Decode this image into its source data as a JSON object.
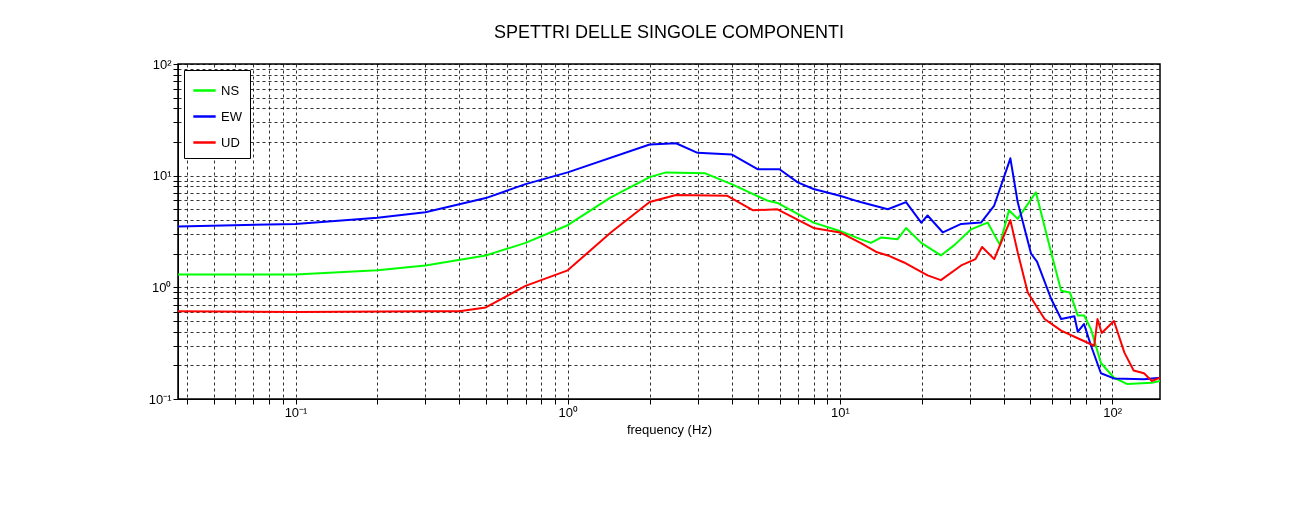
{
  "chart_data": {
    "type": "line",
    "title": "SPETTRI DELLE SINGOLE COMPONENTI",
    "xlabel": "frequency (Hz)",
    "log": "xy",
    "grid": true,
    "legend": "top left",
    "marker": "none",
    "line_style": "solid",
    "xlim": [
      0.037,
      150
    ],
    "ylim": [
      0.1,
      100
    ],
    "xticks": [
      {
        "value": 0.04,
        "label": null
      },
      {
        "value": 0.05,
        "label": null
      },
      {
        "value": 0.06,
        "label": null
      },
      {
        "value": 0.07,
        "label": null
      },
      {
        "value": 0.08,
        "label": null
      },
      {
        "value": 0.09,
        "label": null
      },
      {
        "value": 0.1,
        "label": "10⁻¹"
      },
      {
        "value": 0.2,
        "label": null
      },
      {
        "value": 0.3,
        "label": null
      },
      {
        "value": 0.4,
        "label": null
      },
      {
        "value": 0.5,
        "label": null
      },
      {
        "value": 0.6,
        "label": null
      },
      {
        "value": 0.7,
        "label": null
      },
      {
        "value": 0.8,
        "label": null
      },
      {
        "value": 0.9,
        "label": null
      },
      {
        "value": 1,
        "label": "10⁰"
      },
      {
        "value": 2,
        "label": null
      },
      {
        "value": 3,
        "label": null
      },
      {
        "value": 4,
        "label": null
      },
      {
        "value": 5,
        "label": null
      },
      {
        "value": 6,
        "label": null
      },
      {
        "value": 7,
        "label": null
      },
      {
        "value": 8,
        "label": null
      },
      {
        "value": 9,
        "label": null
      },
      {
        "value": 10,
        "label": "10¹"
      },
      {
        "value": 20,
        "label": null
      },
      {
        "value": 30,
        "label": null
      },
      {
        "value": 40,
        "label": null
      },
      {
        "value": 50,
        "label": null
      },
      {
        "value": 60,
        "label": null
      },
      {
        "value": 70,
        "label": null
      },
      {
        "value": 80,
        "label": null
      },
      {
        "value": 90,
        "label": null
      },
      {
        "value": 100,
        "label": "10²"
      }
    ],
    "yticks": [
      {
        "value": 0.1,
        "label": "10⁻¹"
      },
      {
        "value": 0.2,
        "label": null
      },
      {
        "value": 0.3,
        "label": null
      },
      {
        "value": 0.4,
        "label": null
      },
      {
        "value": 0.5,
        "label": null
      },
      {
        "value": 0.6,
        "label": null
      },
      {
        "value": 0.7,
        "label": null
      },
      {
        "value": 0.8,
        "label": null
      },
      {
        "value": 0.9,
        "label": null
      },
      {
        "value": 1,
        "label": "10⁰"
      },
      {
        "value": 2,
        "label": null
      },
      {
        "value": 3,
        "label": null
      },
      {
        "value": 4,
        "label": null
      },
      {
        "value": 5,
        "label": null
      },
      {
        "value": 6,
        "label": null
      },
      {
        "value": 7,
        "label": null
      },
      {
        "value": 8,
        "label": null
      },
      {
        "value": 9,
        "label": null
      },
      {
        "value": 10,
        "label": "10¹"
      },
      {
        "value": 20,
        "label": null
      },
      {
        "value": 30,
        "label": null
      },
      {
        "value": 40,
        "label": null
      },
      {
        "value": 50,
        "label": null
      },
      {
        "value": 60,
        "label": null
      },
      {
        "value": 70,
        "label": null
      },
      {
        "value": 80,
        "label": null
      },
      {
        "value": 90,
        "label": null
      },
      {
        "value": 100,
        "label": "10²"
      }
    ],
    "series": [
      {
        "name": "NS",
        "color": "#00ff00",
        "x": [
          0.037,
          0.1,
          0.2,
          0.3,
          0.5,
          0.7,
          1.0,
          1.44,
          2.0,
          2.3,
          3.2,
          4.0,
          5.4,
          5.9,
          8.0,
          10,
          11.9,
          13,
          14.2,
          16.3,
          17.5,
          19.9,
          23.5,
          26.4,
          30.3,
          34.9,
          38.7,
          41.8,
          45,
          52.5,
          59.7,
          65,
          70,
          74.8,
          79,
          83.7,
          91,
          101.6,
          114,
          140,
          150
        ],
        "values": [
          1.3,
          1.3,
          1.42,
          1.57,
          1.93,
          2.5,
          3.6,
          6.4,
          9.7,
          10.7,
          10.5,
          8.4,
          6.0,
          5.7,
          3.8,
          3.2,
          2.7,
          2.5,
          2.8,
          2.7,
          3.4,
          2.5,
          1.93,
          2.4,
          3.3,
          3.8,
          2.4,
          4.9,
          4.1,
          7.1,
          2.06,
          0.93,
          0.9,
          0.56,
          0.56,
          0.42,
          0.21,
          0.155,
          0.136,
          0.14,
          0.145
        ]
      },
      {
        "name": "EW",
        "color": "#0000ff",
        "x": [
          0.037,
          0.1,
          0.2,
          0.3,
          0.5,
          0.7,
          1.0,
          2.0,
          2.5,
          3.0,
          4.0,
          5.0,
          6.0,
          7.0,
          8.0,
          10,
          11.9,
          15,
          17.5,
          19.9,
          21,
          23.9,
          27.9,
          33,
          36.9,
          42.3,
          45,
          50.4,
          53,
          59.7,
          65,
          72.7,
          74.8,
          78.9,
          83.7,
          91,
          101.6,
          131,
          150
        ],
        "values": [
          3.5,
          3.7,
          4.2,
          4.7,
          6.3,
          8.4,
          10.7,
          19,
          19.5,
          16,
          15.5,
          11.4,
          11.4,
          8.7,
          7.6,
          6.6,
          5.8,
          5.0,
          5.8,
          3.8,
          4.4,
          3.1,
          3.7,
          3.8,
          5.4,
          14.3,
          5.8,
          2.0,
          1.7,
          0.79,
          0.52,
          0.55,
          0.4,
          0.47,
          0.3,
          0.17,
          0.153,
          0.15,
          0.155
        ]
      },
      {
        "name": "UD",
        "color": "#ff0000",
        "x": [
          0.037,
          0.1,
          0.3,
          0.4,
          0.5,
          0.7,
          1.0,
          1.44,
          2.0,
          2.5,
          3.86,
          4.8,
          5.9,
          8.0,
          10,
          11.9,
          13.7,
          15,
          17.2,
          21,
          23.5,
          27.9,
          31.5,
          33.3,
          36.9,
          42.3,
          45,
          49,
          56.5,
          65,
          74.8,
          86,
          88.4,
          91.6,
          101.6,
          111,
          120,
          131,
          140,
          150
        ],
        "values": [
          0.61,
          0.6,
          0.61,
          0.61,
          0.66,
          1.03,
          1.42,
          3.1,
          5.8,
          6.7,
          6.6,
          4.9,
          5.0,
          3.4,
          3.1,
          2.5,
          2.06,
          1.93,
          1.67,
          1.28,
          1.16,
          1.57,
          1.79,
          2.3,
          1.79,
          4.0,
          2.06,
          0.9,
          0.52,
          0.41,
          0.35,
          0.3,
          0.52,
          0.39,
          0.5,
          0.26,
          0.18,
          0.17,
          0.145,
          0.155
        ]
      }
    ]
  }
}
